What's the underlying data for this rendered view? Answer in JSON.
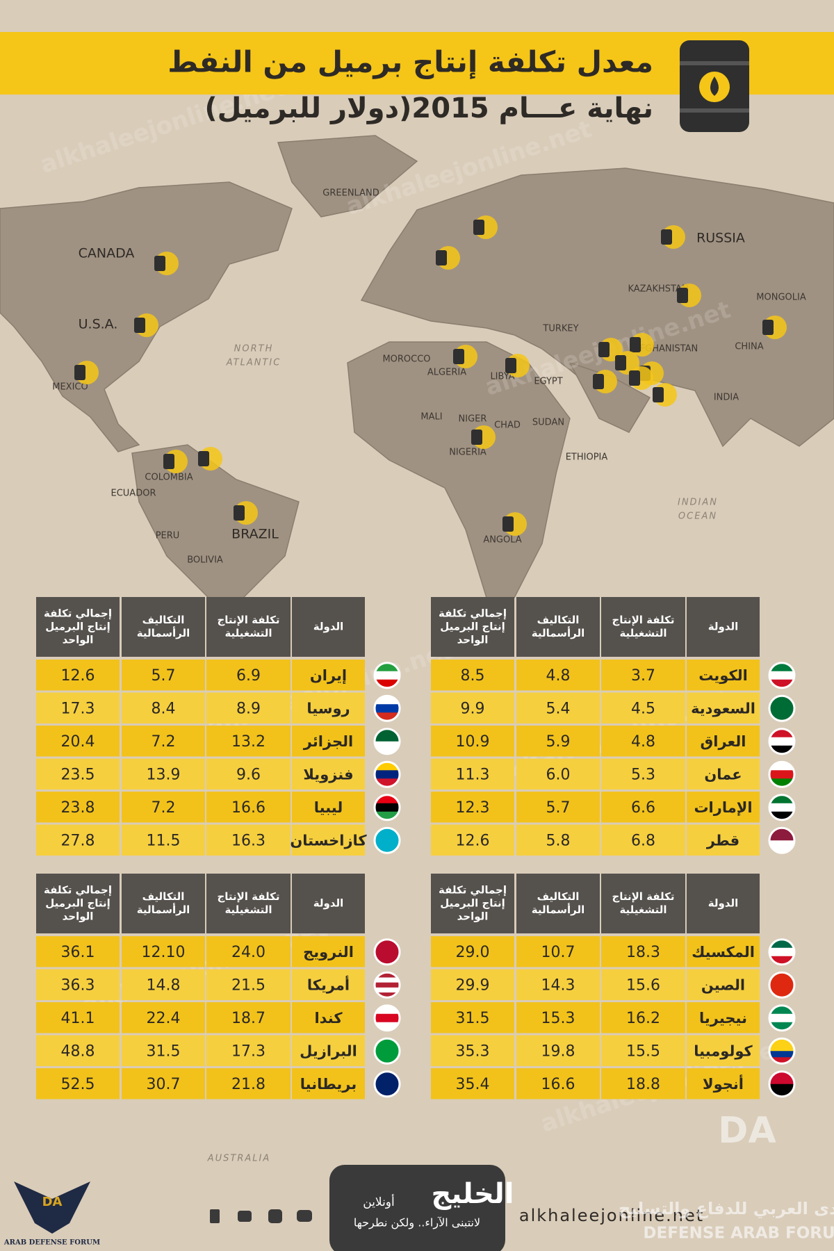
{
  "header": {
    "title": "معدل تكلفة إنتاج برميل من النفط",
    "subtitle": "(دولار للبرميل)نهاية عـــام 2015"
  },
  "map_labels": [
    "GREENLAND",
    "CANADA",
    "U.S.A.",
    "RUSSIA",
    "KAZAKHSTAN",
    "MONGOLIA",
    "CHINA",
    "INDIA",
    "BRAZIL",
    "MEXICO",
    "ALGERIA",
    "LIBYA",
    "EGYPT",
    "NIGERIA",
    "ANGOLA",
    "COLOMBIA",
    "PERU",
    "BOLIVIA",
    "NORTH",
    "ATLANTIC",
    "INDIAN",
    "OCEAN",
    "AUSTRALIA",
    "MALI",
    "NIGER",
    "CHAD",
    "SUDAN",
    "ETHIOPIA",
    "TURKEY",
    "MOROCCO",
    "ECUADOR",
    "AFGHANISTAN"
  ],
  "tables": [
    {
      "header": [
        [
          "الدولة"
        ],
        [
          "تكلفة الإنتاج",
          "التشغيلية"
        ],
        [
          "التكاليف",
          "الرأسمالية"
        ],
        [
          "إجمالي تكلفة",
          "إنتاج البرميل",
          "الواحد"
        ]
      ],
      "rows": [
        [
          "الكويت",
          "3.7",
          "4.8",
          "8.5"
        ],
        [
          "السعودية",
          "4.5",
          "5.4",
          "9.9"
        ],
        [
          "العراق",
          "4.8",
          "5.9",
          "10.9"
        ],
        [
          "عمان",
          "5.3",
          "6.0",
          "11.3"
        ],
        [
          "الإمارات",
          "6.6",
          "5.7",
          "12.3"
        ],
        [
          "قطر",
          "6.8",
          "5.8",
          "12.6"
        ]
      ]
    },
    {
      "header": [
        [
          "الدولة"
        ],
        [
          "تكلفة الإنتاج",
          "التشغيلية"
        ],
        [
          "التكاليف",
          "الرأسمالية"
        ],
        [
          "إجمالي تكلفة",
          "إنتاج البرميل",
          "الواحد"
        ]
      ],
      "rows": [
        [
          "إيران",
          "6.9",
          "5.7",
          "12.6"
        ],
        [
          "روسيا",
          "8.9",
          "8.4",
          "17.3"
        ],
        [
          "الجزائر",
          "13.2",
          "7.2",
          "20.4"
        ],
        [
          "فنزويلا",
          "9.6",
          "13.9",
          "23.5"
        ],
        [
          "ليبيا",
          "16.6",
          "7.2",
          "23.8"
        ],
        [
          "كازاخستان",
          "16.3",
          "11.5",
          "27.8"
        ]
      ]
    },
    {
      "header": [
        [
          "الدولة"
        ],
        [
          "تكلفة الإنتاج",
          "التشغيلية"
        ],
        [
          "التكاليف",
          "الرأسمالية"
        ],
        [
          "إجمالي تكلفة",
          "إنتاج البرميل",
          "الواحد"
        ]
      ],
      "rows": [
        [
          "المكسيك",
          "18.3",
          "10.7",
          "29.0"
        ],
        [
          "الصين",
          "15.6",
          "14.3",
          "29.9"
        ],
        [
          "نيجيريا",
          "16.2",
          "15.3",
          "31.5"
        ],
        [
          "كولومبيا",
          "15.5",
          "19.8",
          "35.3"
        ],
        [
          "أنجولا",
          "18.8",
          "16.6",
          "35.4"
        ]
      ]
    },
    {
      "header": [
        [
          "الدولة"
        ],
        [
          "تكلفة الإنتاج",
          "التشغيلية"
        ],
        [
          "التكاليف",
          "الرأسمالية"
        ],
        [
          "إجمالي تكلفة",
          "إنتاج البرميل",
          "الواحد"
        ]
      ],
      "rows": [
        [
          "النرويج",
          "24.0",
          "12.10",
          "36.1"
        ],
        [
          "أمريكا",
          "21.5",
          "14.8",
          "36.3"
        ],
        [
          "كندا",
          "18.7",
          "22.4",
          "41.1"
        ],
        [
          "البرازيل",
          "17.3",
          "31.5",
          "48.8"
        ],
        [
          "بريطانيا",
          "21.8",
          "30.7",
          "52.5"
        ]
      ]
    }
  ],
  "footer": {
    "brand": "الخليج",
    "brand_sub": "أونلاين",
    "slogan": "لانتبنى الآراء.. ولكن نطرحها",
    "url": "alkhaleejonline.net",
    "left_logo": "ARAB DEFENSE FORUM",
    "right_logo_ar": "المنتدى العربي للدفاع والتسليح",
    "right_logo_en": "DEFENSE ARAB FORUM",
    "logo_mark": "DA"
  },
  "watermark": "alkhaleejonline.net"
}
